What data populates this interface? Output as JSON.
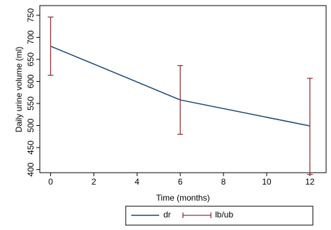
{
  "chart_data": {
    "type": "line",
    "x_label": "Time (months)",
    "y_label": "Daily urine volume (ml)",
    "x": [
      0,
      6,
      12
    ],
    "series": [
      {
        "name": "dr",
        "color": "#1a476f",
        "values": [
          680,
          558,
          499
        ]
      }
    ],
    "error_bars": {
      "name": "lb/ub",
      "color": "#90353b",
      "lower": [
        614,
        480,
        389
      ],
      "upper": [
        746,
        636,
        607
      ]
    },
    "xlim": [
      -0.5,
      12.75
    ],
    "ylim": [
      393,
      772
    ],
    "xticks": [
      0,
      2,
      4,
      6,
      8,
      10,
      12
    ],
    "yticks": [
      400,
      450,
      500,
      550,
      600,
      650,
      700,
      750
    ],
    "grid": false,
    "legend": "bottom"
  }
}
